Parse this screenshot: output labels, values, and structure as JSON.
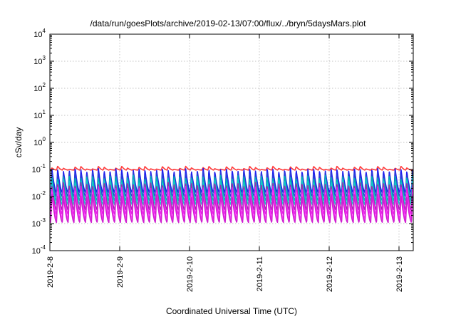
{
  "chart_data": {
    "type": "line",
    "title": "/data/run/goesPlots/archive/2019-02-13/07:00/flux/../bryn/5daysMars.plot",
    "xlabel": "Coordinated Universal Time (UTC)",
    "ylabel": "cSv/day",
    "yscale": "log",
    "ylim": [
      0.0001,
      10000
    ],
    "xlim": [
      "2019-02-08",
      "2019-02-13 08:00"
    ],
    "grid": true,
    "legend": "none",
    "x_ticks": [
      "2019-2-8",
      "2019-2-9",
      "2019-2-10",
      "2019-2-11",
      "2019-2-12",
      "2019-2-13"
    ],
    "y_ticks": [
      {
        "value": 0.0001,
        "base": "10",
        "exp": "-4"
      },
      {
        "value": 0.001,
        "base": "10",
        "exp": "-3"
      },
      {
        "value": 0.01,
        "base": "10",
        "exp": "-2"
      },
      {
        "value": 0.1,
        "base": "10",
        "exp": "-1"
      },
      {
        "value": 1,
        "base": "10",
        "exp": "0"
      },
      {
        "value": 10,
        "base": "10",
        "exp": "1"
      },
      {
        "value": 100,
        "base": "10",
        "exp": "2"
      },
      {
        "value": 1000,
        "base": "10",
        "exp": "3"
      },
      {
        "value": 10000,
        "base": "10",
        "exp": "4"
      }
    ],
    "periodic_pattern": {
      "cycles_per_day": 12,
      "start_offset_hours": 0.3
    },
    "series": [
      {
        "color": "#ff3b3b",
        "peak": 0.115,
        "trough": 0.095
      },
      {
        "color": "#1e1ef0",
        "peak": 0.1,
        "trough": 0.014
      },
      {
        "color": "#2b3dd8",
        "peak": 0.075,
        "trough": 0.01
      },
      {
        "color": "#00b4b4",
        "peak": 0.055,
        "trough": 0.007
      },
      {
        "color": "#18c8c8",
        "peak": 0.04,
        "trough": 0.005
      },
      {
        "color": "#9b2fa8",
        "peak": 0.03,
        "trough": 0.0032
      },
      {
        "color": "#e81ee8",
        "peak": 0.022,
        "trough": 0.0022
      },
      {
        "color": "#ff33ff",
        "peak": 0.016,
        "trough": 0.0015
      },
      {
        "color": "#d11fd1",
        "peak": 0.012,
        "trough": 0.0011
      }
    ]
  }
}
